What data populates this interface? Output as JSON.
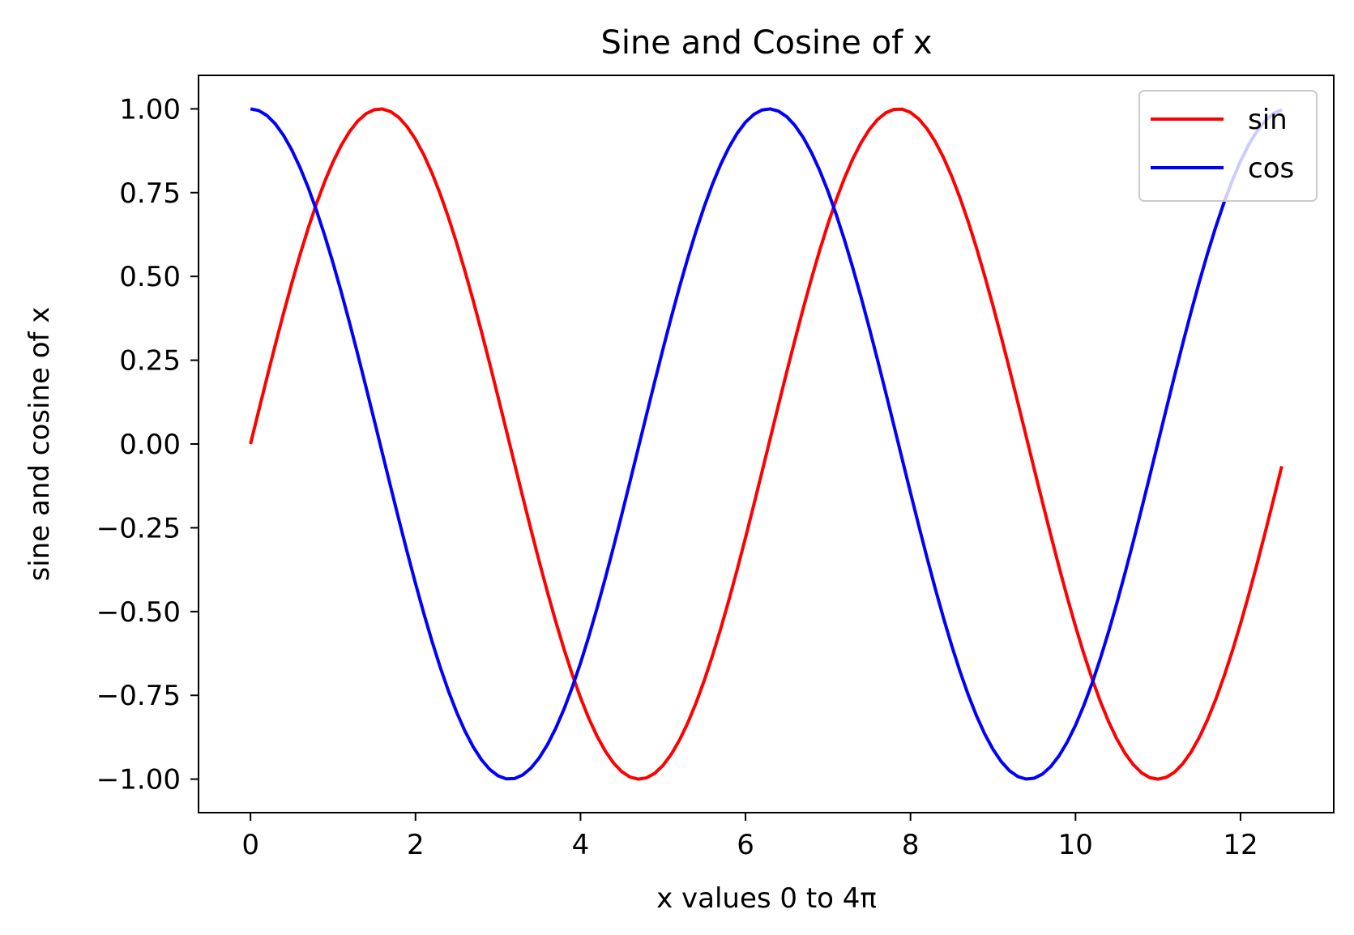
{
  "chart_data": {
    "type": "line",
    "title": "Sine and Cosine of x",
    "xlabel": "x values 0 to 4π",
    "ylabel": "sine and cosine of x",
    "xlim": [
      -0.63,
      13.13
    ],
    "ylim": [
      -1.1,
      1.1
    ],
    "x_range": [
      0,
      12.5
    ],
    "num_points": 126,
    "xticks": [
      0,
      2,
      4,
      6,
      8,
      10,
      12
    ],
    "xtick_labels": [
      "0",
      "2",
      "4",
      "6",
      "8",
      "10",
      "12"
    ],
    "yticks": [
      1.0,
      0.75,
      0.5,
      0.25,
      0.0,
      -0.25,
      -0.5,
      -0.75,
      -1.0
    ],
    "ytick_labels": [
      "1.00",
      "0.75",
      "0.50",
      "0.25",
      "0.00",
      "−0.25",
      "−0.50",
      "−0.75",
      "−1.00"
    ],
    "grid": false,
    "legend_position": "top-right",
    "series": [
      {
        "name": "sin",
        "function": "sin",
        "color": "#ff0000"
      },
      {
        "name": "cos",
        "function": "cos",
        "color": "#0000ff"
      }
    ]
  }
}
